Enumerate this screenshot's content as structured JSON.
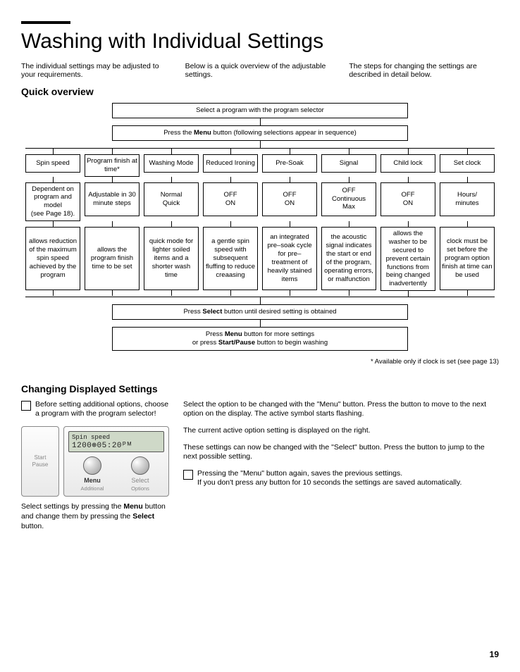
{
  "title": "Washing with Individual Settings",
  "intro": {
    "c1": "The individual settings may be adjusted to your requirements.",
    "c2": "Below is a quick overview of the adjustable settings.",
    "c3": "The steps for changing the settings are described in detail below."
  },
  "quick_overview_h": "Quick overview",
  "flow": {
    "top1": "Select a program with the program selector",
    "top2_pre": "Press the ",
    "top2_b": "Menu",
    "top2_post": " button (following selections appear in sequence)",
    "cols": [
      {
        "head": "Spin speed",
        "opts": "Dependent on program and model\n(see Page 18).",
        "desc": "allows reduction of the maximum spin speed achieved by the program"
      },
      {
        "head": "Program finish at time*",
        "opts": "Adjustable in 30 minute steps",
        "desc": "allows the program finish time to be set"
      },
      {
        "head": "Washing Mode",
        "opts": "Normal\nQuick",
        "desc": "quick mode for lighter soiled items and a shorter wash time"
      },
      {
        "head": "Reduced Ironing",
        "opts": "OFF\nON",
        "desc": "a gentle spin speed with subsequent fluffing to reduce creaasing"
      },
      {
        "head": "Pre-Soak",
        "opts": "OFF\nON",
        "desc": "an integrated pre–soak cycle for pre–treatment of heavily stained items"
      },
      {
        "head": "Signal",
        "opts": "OFF\nContinuous\nMax",
        "desc": "the acoustic signal indicates the start or end of the program, operating errors, or malfunction"
      },
      {
        "head": "Child lock",
        "opts": "OFF\nON",
        "desc": "allows the washer to be secured to prevent certain functions from being changed inadvertently"
      },
      {
        "head": "Set clock",
        "opts": "Hours/\nminutes",
        "desc": "clock must be set before the program option finish at time can be used"
      }
    ],
    "bottom1_pre": "Press ",
    "bottom1_b": "Select",
    "bottom1_post": " button until desired setting is obtained",
    "bottom2_l1_pre": "Press ",
    "bottom2_l1_b": "Menu",
    "bottom2_l1_post": " button for more settings",
    "bottom2_l2_pre": "or press ",
    "bottom2_l2_b": "Start/Pause",
    "bottom2_l2_post": " button to begin washing",
    "footnote": "* Available only if clock is set (see page 13)"
  },
  "cds_h": "Changing Displayed Settings",
  "cds": {
    "check1": "Before setting additional options, choose a program with the program selector!",
    "panel": {
      "start": "Start",
      "pause": "Pause",
      "lcd1": "Spin speed",
      "lcd2": "1200⊕05:20ᴾᴹ",
      "menu": "Menu",
      "menu_sub": "Additional",
      "select": "Select",
      "select_sub": "Options"
    },
    "caption_pre": "Select settings by pressing the ",
    "caption_b1": "Menu",
    "caption_mid": " button and change them by pressing the ",
    "caption_b2": "Select",
    "caption_post": " button.",
    "r1": "Select the option to be changed with the \"Menu\" button. Press the button to move to the next option on the display. The active symbol starts flashing.",
    "r2": "The current active option setting is displayed on the right.",
    "r3": "These settings can now be changed with the \"Select\" button. Press the button to jump to the next possible setting.",
    "check2": "Pressing the \"Menu\" button again, saves the previous settings.\nIf you don't press any button for 10 seconds the settings are saved automatically."
  },
  "page_num": "19"
}
